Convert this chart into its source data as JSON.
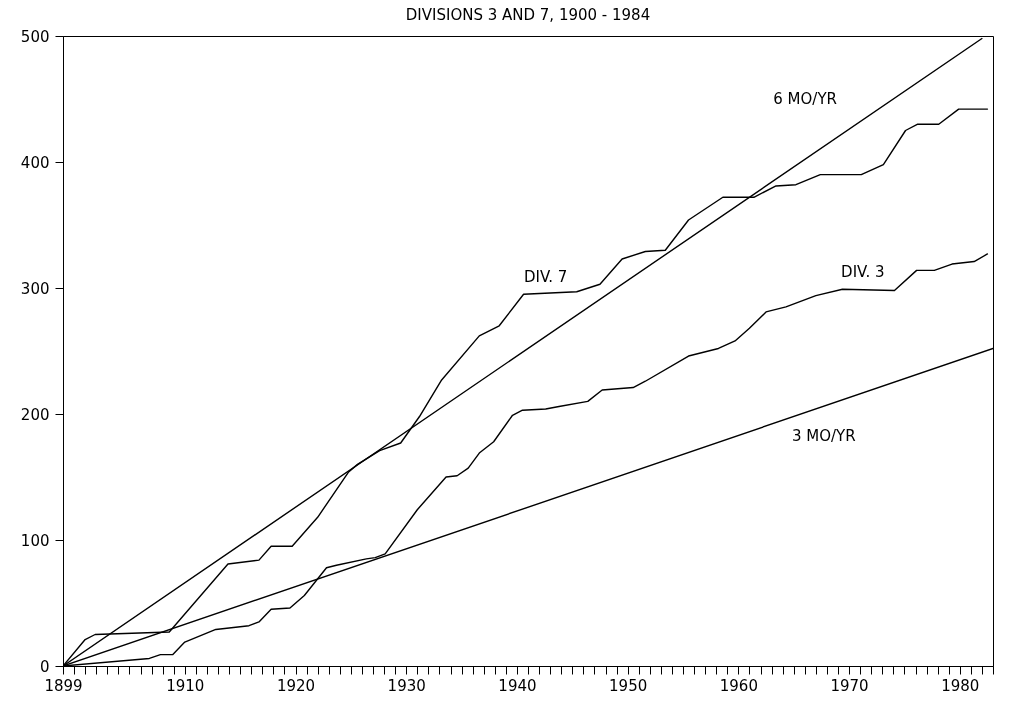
{
  "chart_data": {
    "type": "line",
    "title": "DIVISIONS 3 AND 7, 1900 - 1984",
    "xlim": [
      1899,
      1983
    ],
    "ylim": [
      0,
      500
    ],
    "yticks": [
      0,
      100,
      200,
      300,
      400,
      500
    ],
    "xticks": [
      1899,
      {
        "value": 1900,
        "label": null
      },
      {
        "value": 1901,
        "label": null
      },
      {
        "value": 1902,
        "label": null
      },
      {
        "value": 1903,
        "label": null
      },
      {
        "value": 1904,
        "label": null
      },
      {
        "value": 1905,
        "label": null
      },
      {
        "value": 1906,
        "label": null
      },
      {
        "value": 1907,
        "label": null
      },
      {
        "value": 1908,
        "label": null
      },
      {
        "value": 1909,
        "label": null
      },
      1910,
      {
        "value": 1911,
        "label": null
      },
      {
        "value": 1912,
        "label": null
      },
      {
        "value": 1913,
        "label": null
      },
      {
        "value": 1914,
        "label": null
      },
      {
        "value": 1915,
        "label": null
      },
      {
        "value": 1916,
        "label": null
      },
      {
        "value": 1917,
        "label": null
      },
      {
        "value": 1918,
        "label": null
      },
      {
        "value": 1919,
        "label": null
      },
      1920,
      {
        "value": 1921,
        "label": null
      },
      {
        "value": 1922,
        "label": null
      },
      {
        "value": 1923,
        "label": null
      },
      {
        "value": 1924,
        "label": null
      },
      {
        "value": 1925,
        "label": null
      },
      {
        "value": 1926,
        "label": null
      },
      {
        "value": 1927,
        "label": null
      },
      {
        "value": 1928,
        "label": null
      },
      {
        "value": 1929,
        "label": null
      },
      1930,
      {
        "value": 1931,
        "label": null
      },
      {
        "value": 1932,
        "label": null
      },
      {
        "value": 1933,
        "label": null
      },
      {
        "value": 1934,
        "label": null
      },
      {
        "value": 1935,
        "label": null
      },
      {
        "value": 1936,
        "label": null
      },
      {
        "value": 1937,
        "label": null
      },
      {
        "value": 1938,
        "label": null
      },
      {
        "value": 1939,
        "label": null
      },
      1940,
      {
        "value": 1941,
        "label": null
      },
      {
        "value": 1942,
        "label": null
      },
      {
        "value": 1943,
        "label": null
      },
      {
        "value": 1944,
        "label": null
      },
      {
        "value": 1945,
        "label": null
      },
      {
        "value": 1946,
        "label": null
      },
      {
        "value": 1947,
        "label": null
      },
      {
        "value": 1948,
        "label": null
      },
      {
        "value": 1949,
        "label": null
      },
      1950,
      {
        "value": 1951,
        "label": null
      },
      {
        "value": 1952,
        "label": null
      },
      {
        "value": 1953,
        "label": null
      },
      {
        "value": 1954,
        "label": null
      },
      {
        "value": 1955,
        "label": null
      },
      {
        "value": 1956,
        "label": null
      },
      {
        "value": 1957,
        "label": null
      },
      {
        "value": 1958,
        "label": null
      },
      {
        "value": 1959,
        "label": null
      },
      1960,
      {
        "value": 1961,
        "label": null
      },
      {
        "value": 1962,
        "label": null
      },
      {
        "value": 1963,
        "label": null
      },
      {
        "value": 1964,
        "label": null
      },
      {
        "value": 1965,
        "label": null
      },
      {
        "value": 1966,
        "label": null
      },
      {
        "value": 1967,
        "label": null
      },
      {
        "value": 1968,
        "label": null
      },
      {
        "value": 1969,
        "label": null
      },
      1970,
      {
        "value": 1971,
        "label": null
      },
      {
        "value": 1972,
        "label": null
      },
      {
        "value": 1973,
        "label": null
      },
      {
        "value": 1974,
        "label": null
      },
      {
        "value": 1975,
        "label": null
      },
      {
        "value": 1976,
        "label": null
      },
      {
        "value": 1977,
        "label": null
      },
      {
        "value": 1978,
        "label": null
      },
      {
        "value": 1979,
        "label": null
      },
      1980,
      {
        "value": 1981,
        "label": null
      },
      {
        "value": 1982,
        "label": null
      },
      {
        "value": 1983,
        "label": null
      }
    ],
    "series": [
      {
        "name": "6 MO/YR",
        "color": "#000000",
        "x": [
          1899,
          1982
        ],
        "values": [
          0,
          498
        ]
      },
      {
        "name": "3 MO/YR",
        "color": "#000000",
        "x": [
          1899,
          1983
        ],
        "values": [
          0,
          252
        ]
      },
      {
        "name": "DIV. 7",
        "color": "#000000",
        "x": [
          1899,
          1901.0,
          1901.9,
          1908.6,
          1913.9,
          1916.7,
          1917.8,
          1919.7,
          1922.0,
          1924.8,
          1925.6,
          1927.6,
          1929.5,
          1931.2,
          1933.2,
          1936.6,
          1938.4,
          1940.6,
          1945.4,
          1947.5,
          1949.5,
          1951.6,
          1953.4,
          1955.5,
          1958.6,
          1961.4,
          1963.4,
          1965.2,
          1967.4,
          1971.1,
          1973.1,
          1975.1,
          1976.2,
          1978.1,
          1979.9,
          1982.5
        ],
        "values": [
          0,
          21,
          25,
          27,
          81,
          84,
          95,
          95,
          118,
          154,
          160,
          171,
          177,
          198,
          227,
          262,
          270,
          295,
          297,
          303,
          323,
          329,
          330,
          354,
          372,
          372,
          381,
          382,
          390,
          390,
          398,
          425,
          430,
          430,
          442,
          442
        ]
      },
      {
        "name": "DIV. 3",
        "color": "#000000",
        "x": [
          1899,
          1906.8,
          1907.8,
          1908.9,
          1910.0,
          1912.8,
          1915.8,
          1916.7,
          1917.8,
          1919.5,
          1920.8,
          1922.8,
          1923.7,
          1926.4,
          1927.2,
          1928.1,
          1931.0,
          1933.6,
          1934.6,
          1935.6,
          1936.6,
          1937.9,
          1939.6,
          1940.5,
          1942.6,
          1943.8,
          1946.4,
          1947.7,
          1950.5,
          1951.6,
          1955.5,
          1958.2,
          1959.7,
          1961.0,
          1962.5,
          1964.3,
          1967.0,
          1969.4,
          1974.1,
          1976.1,
          1977.7,
          1979.3,
          1981.3,
          1982.5
        ],
        "values": [
          0,
          6,
          9,
          9,
          19,
          29,
          32,
          35,
          45,
          46,
          56,
          78,
          80,
          85,
          86,
          89,
          124,
          150,
          151,
          157,
          169,
          178,
          199,
          203,
          204,
          206,
          210,
          219,
          221,
          226,
          246,
          252,
          258,
          268,
          281,
          285,
          294,
          299,
          298,
          314,
          314,
          319,
          321,
          327
        ]
      }
    ]
  }
}
